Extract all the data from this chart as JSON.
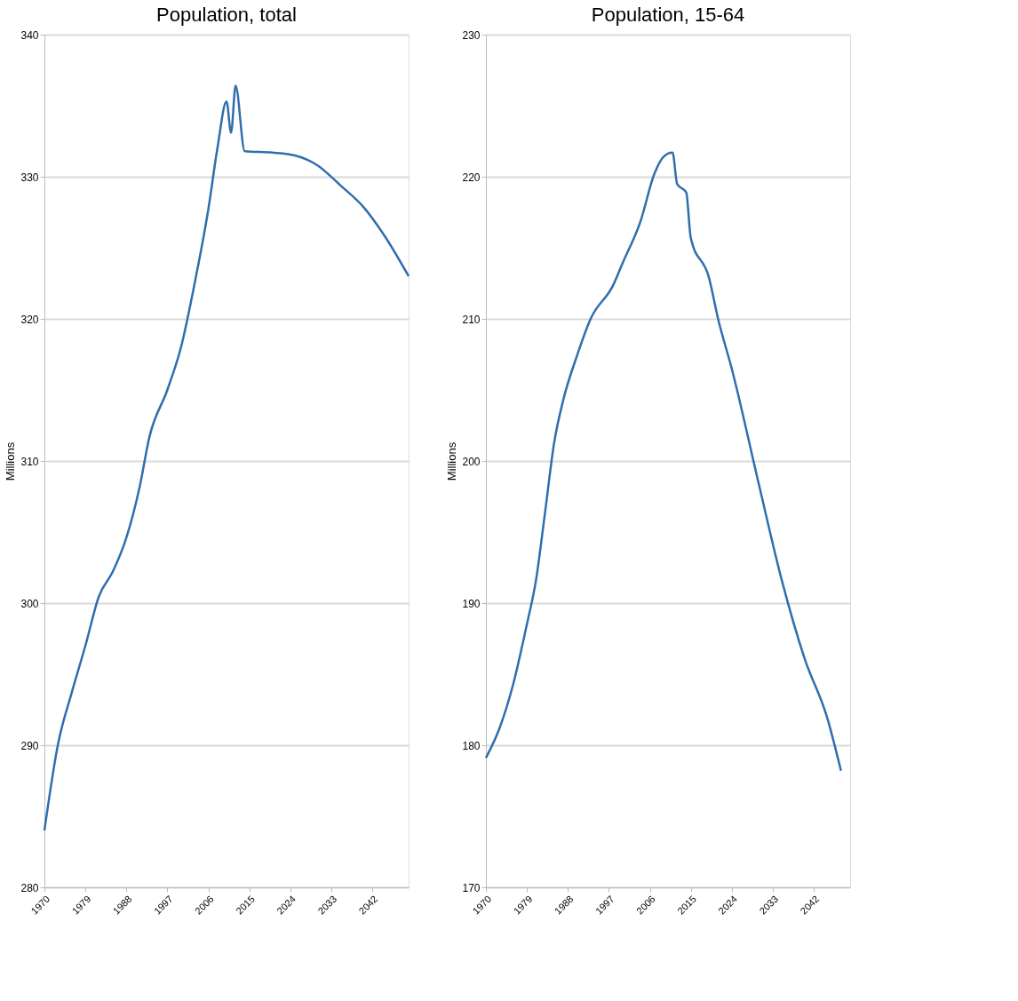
{
  "chart_data": [
    {
      "type": "line",
      "title": "Population, total",
      "ylabel": "Millions",
      "x": [
        1970,
        1973,
        1976,
        1979,
        1982,
        1985,
        1988,
        1991,
        1993,
        1997,
        2000,
        2003,
        2006,
        2008,
        2010,
        2011,
        2012,
        2014,
        2020,
        2025,
        2030,
        2035,
        2040,
        2045,
        2050
      ],
      "series": [
        {
          "color": "#2f6ead",
          "values": [
            284.0,
            290.1,
            293.7,
            297.0,
            300.5,
            302.2,
            304.6,
            308.3,
            311.6,
            315.0,
            318.0,
            322.5,
            327.7,
            332.0,
            335.3,
            333.1,
            336.4,
            331.8,
            331.7,
            331.5,
            330.8,
            329.4,
            327.9,
            325.7,
            323.0
          ]
        }
      ],
      "xlim": [
        1970,
        2050
      ],
      "xticks": [
        1970,
        1979,
        1988,
        1997,
        2006,
        2015,
        2024,
        2033,
        2042
      ],
      "ylim": [
        280,
        340
      ],
      "yticks": [
        280,
        290,
        300,
        310,
        320,
        330,
        340
      ],
      "grid": "y"
    },
    {
      "type": "line",
      "title": "Population, 15-64",
      "ylabel": "Millions",
      "x": [
        1970,
        1973,
        1976,
        1979,
        1981,
        1983,
        1985,
        1987,
        1990,
        1993,
        1998,
        2000,
        2004,
        2007,
        2009,
        2011,
        2012,
        2014,
        2015,
        2019,
        2021,
        2024,
        2030,
        2035,
        2040,
        2045,
        2048
      ],
      "series": [
        {
          "color": "#2f6ead",
          "values": [
            179.1,
            181.2,
            184.3,
            188.5,
            191.6,
            196.4,
            201.3,
            204.3,
            207.4,
            210.0,
            212.4,
            213.9,
            216.9,
            220.2,
            221.4,
            221.7,
            219.5,
            218.9,
            215.7,
            212.9,
            210.0,
            206.5,
            198.3,
            191.6,
            186.1,
            181.9,
            178.2
          ]
        }
      ],
      "xlim": [
        1970,
        2050
      ],
      "xticks": [
        1970,
        1979,
        1988,
        1997,
        2006,
        2015,
        2024,
        2033,
        2042
      ],
      "ylim": [
        170,
        230
      ],
      "yticks": [
        170,
        180,
        190,
        200,
        210,
        220,
        230
      ],
      "grid": "y"
    }
  ]
}
